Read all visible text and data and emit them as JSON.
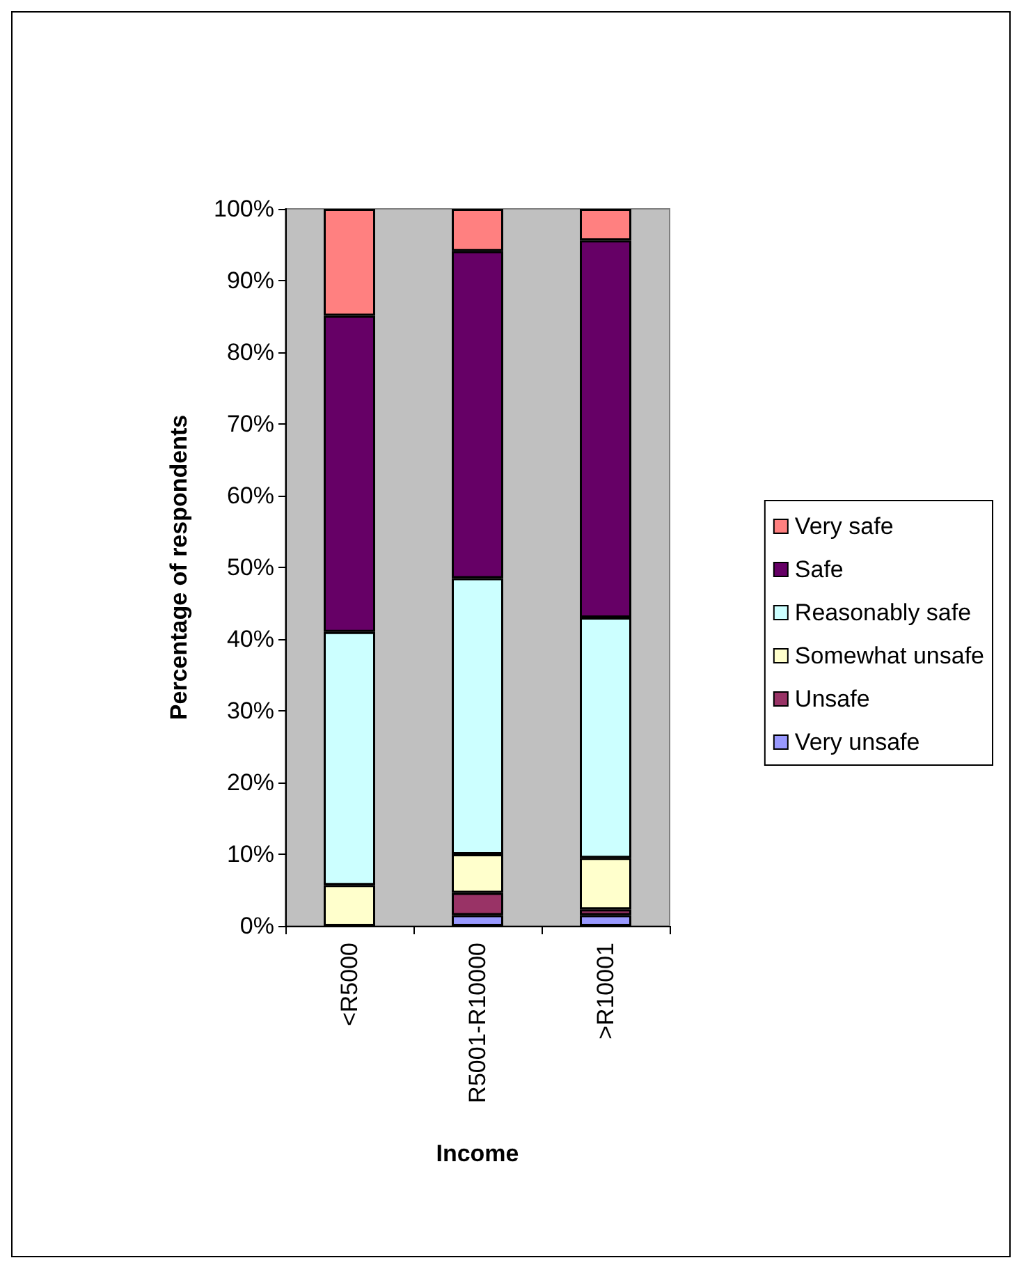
{
  "chart_data": {
    "type": "bar",
    "stacked": true,
    "xlabel": "Income",
    "ylabel": "Percentage of respondents",
    "categories": [
      "<R5000",
      "R5001-R10000",
      ">R10001"
    ],
    "series": [
      {
        "name": "Very unsafe",
        "color": "#9999ff",
        "values": [
          0,
          1.5,
          1.5
        ]
      },
      {
        "name": "Unsafe",
        "color": "#993366",
        "values": [
          0,
          3.1,
          0.8
        ]
      },
      {
        "name": "Somewhat unsafe",
        "color": "#ffffcc",
        "values": [
          5.7,
          5.4,
          7.2
        ]
      },
      {
        "name": "Reasonably safe",
        "color": "#ccffff",
        "values": [
          35.3,
          38.5,
          33.5
        ]
      },
      {
        "name": "Safe",
        "color": "#660066",
        "values": [
          44.1,
          45.6,
          52.6
        ]
      },
      {
        "name": "Very safe",
        "color": "#ff8080",
        "values": [
          14.9,
          5.9,
          4.4
        ]
      }
    ],
    "ylim": [
      0,
      100
    ],
    "yticks": [
      {
        "value": 0,
        "label": "0%"
      },
      {
        "value": 10,
        "label": "10%"
      },
      {
        "value": 20,
        "label": "20%"
      },
      {
        "value": 30,
        "label": "30%"
      },
      {
        "value": 40,
        "label": "40%"
      },
      {
        "value": 50,
        "label": "50%"
      },
      {
        "value": 60,
        "label": "60%"
      },
      {
        "value": 70,
        "label": "70%"
      },
      {
        "value": 80,
        "label": "80%"
      },
      {
        "value": 90,
        "label": "90%"
      },
      {
        "value": 100,
        "label": "100%"
      }
    ],
    "grid": false,
    "legend": "right"
  }
}
